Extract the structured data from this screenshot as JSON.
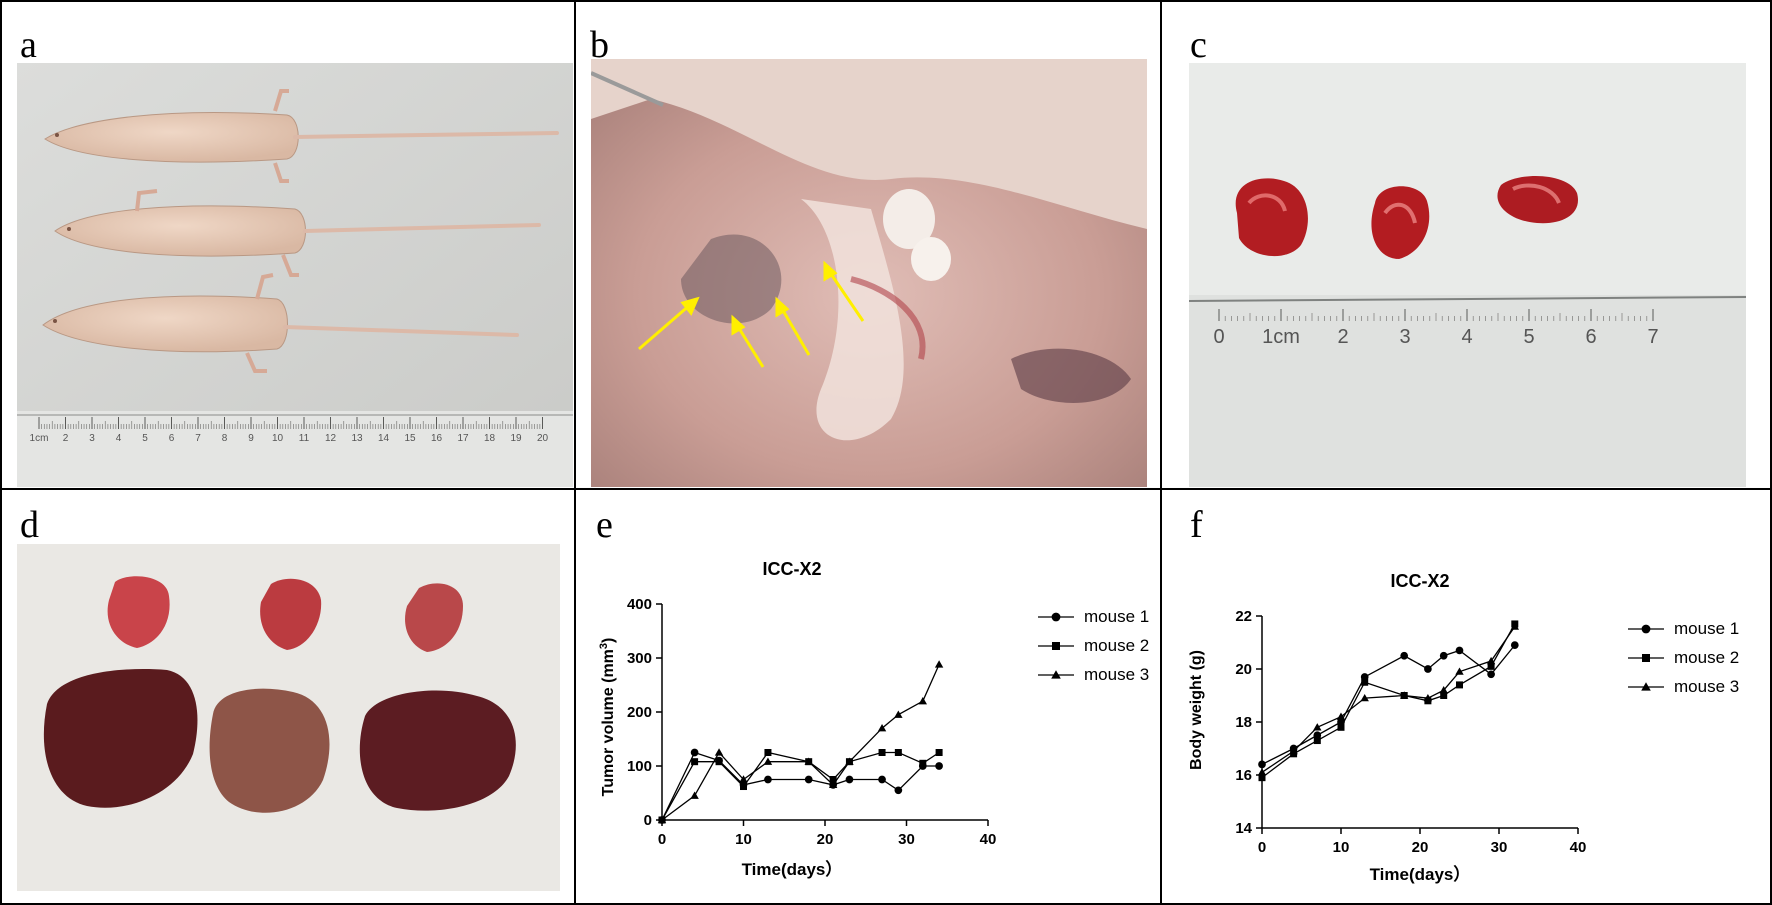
{
  "panels": {
    "a": "a",
    "b": "b",
    "c": "c",
    "d": "d",
    "e": "e",
    "f": "f"
  },
  "photo_a": {
    "ruler_marks": [
      "1cm",
      "2",
      "3",
      "4",
      "5",
      "6",
      "7",
      "8",
      "9",
      "10",
      "11",
      "12",
      "13",
      "14",
      "15",
      "16",
      "17",
      "18",
      "19",
      "20"
    ]
  },
  "photo_c": {
    "ruler_marks": [
      "0",
      "1cm",
      "2",
      "3",
      "4",
      "5",
      "6",
      "7"
    ]
  },
  "chart_e": {
    "title": "ICC-X2",
    "xlabel": "Time(days）",
    "ylabel_main": "Tumor volume (mm",
    "ylabel_sup": "3",
    "ylabel_end": ")"
  },
  "chart_f": {
    "title": "ICC-X2",
    "xlabel": "Time(days）",
    "ylabel": "Body weight (g)"
  },
  "chart_data": [
    {
      "type": "line",
      "title": "ICC-X2",
      "xlabel": "Time(days）",
      "ylabel": "Tumor volume (mm3)",
      "xlim": [
        0,
        40
      ],
      "ylim": [
        0,
        400
      ],
      "xticks": [
        0,
        10,
        20,
        30,
        40
      ],
      "yticks": [
        0,
        100,
        200,
        300,
        400
      ],
      "grid": false,
      "legend": "right",
      "series": [
        {
          "name": "mouse 1",
          "marker": "circle",
          "x": [
            0,
            4,
            7,
            10,
            13,
            18,
            21,
            23,
            27,
            29,
            32,
            34
          ],
          "y": [
            0,
            125,
            110,
            65,
            75,
            75,
            65,
            75,
            75,
            55,
            100,
            100
          ]
        },
        {
          "name": "mouse 2",
          "marker": "square",
          "x": [
            0,
            4,
            7,
            10,
            13,
            18,
            21,
            23,
            27,
            29,
            32,
            34
          ],
          "y": [
            0,
            108,
            108,
            62,
            125,
            108,
            75,
            108,
            125,
            125,
            105,
            125
          ]
        },
        {
          "name": "mouse 3",
          "marker": "triangle",
          "x": [
            0,
            4,
            7,
            10,
            13,
            18,
            21,
            23,
            27,
            29,
            32,
            34
          ],
          "y": [
            0,
            45,
            125,
            75,
            108,
            108,
            65,
            108,
            170,
            195,
            220,
            288
          ]
        }
      ]
    },
    {
      "type": "line",
      "title": "ICC-X2",
      "xlabel": "Time(days）",
      "ylabel": "Body weight (g)",
      "xlim": [
        0,
        40
      ],
      "ylim": [
        14,
        22
      ],
      "xticks": [
        0,
        10,
        20,
        30,
        40
      ],
      "yticks": [
        14,
        16,
        18,
        20,
        22
      ],
      "grid": false,
      "legend": "right",
      "series": [
        {
          "name": "mouse 1",
          "marker": "circle",
          "x": [
            0,
            4,
            7,
            10,
            13,
            18,
            21,
            23,
            25,
            29,
            32
          ],
          "y": [
            16.4,
            17.0,
            17.5,
            18.0,
            19.7,
            20.5,
            20.0,
            20.5,
            20.7,
            19.8,
            20.9
          ]
        },
        {
          "name": "mouse 2",
          "marker": "square",
          "x": [
            0,
            4,
            7,
            10,
            13,
            18,
            21,
            23,
            25,
            29,
            32
          ],
          "y": [
            15.9,
            16.8,
            17.3,
            17.8,
            19.5,
            19.0,
            18.8,
            19.0,
            19.4,
            20.1,
            21.7
          ]
        },
        {
          "name": "mouse 3",
          "marker": "triangle",
          "x": [
            0,
            4,
            7,
            10,
            13,
            18,
            21,
            23,
            25,
            29,
            32
          ],
          "y": [
            16.1,
            16.9,
            17.8,
            18.2,
            18.9,
            19.0,
            18.9,
            19.2,
            19.9,
            20.3,
            21.6
          ]
        }
      ]
    }
  ]
}
